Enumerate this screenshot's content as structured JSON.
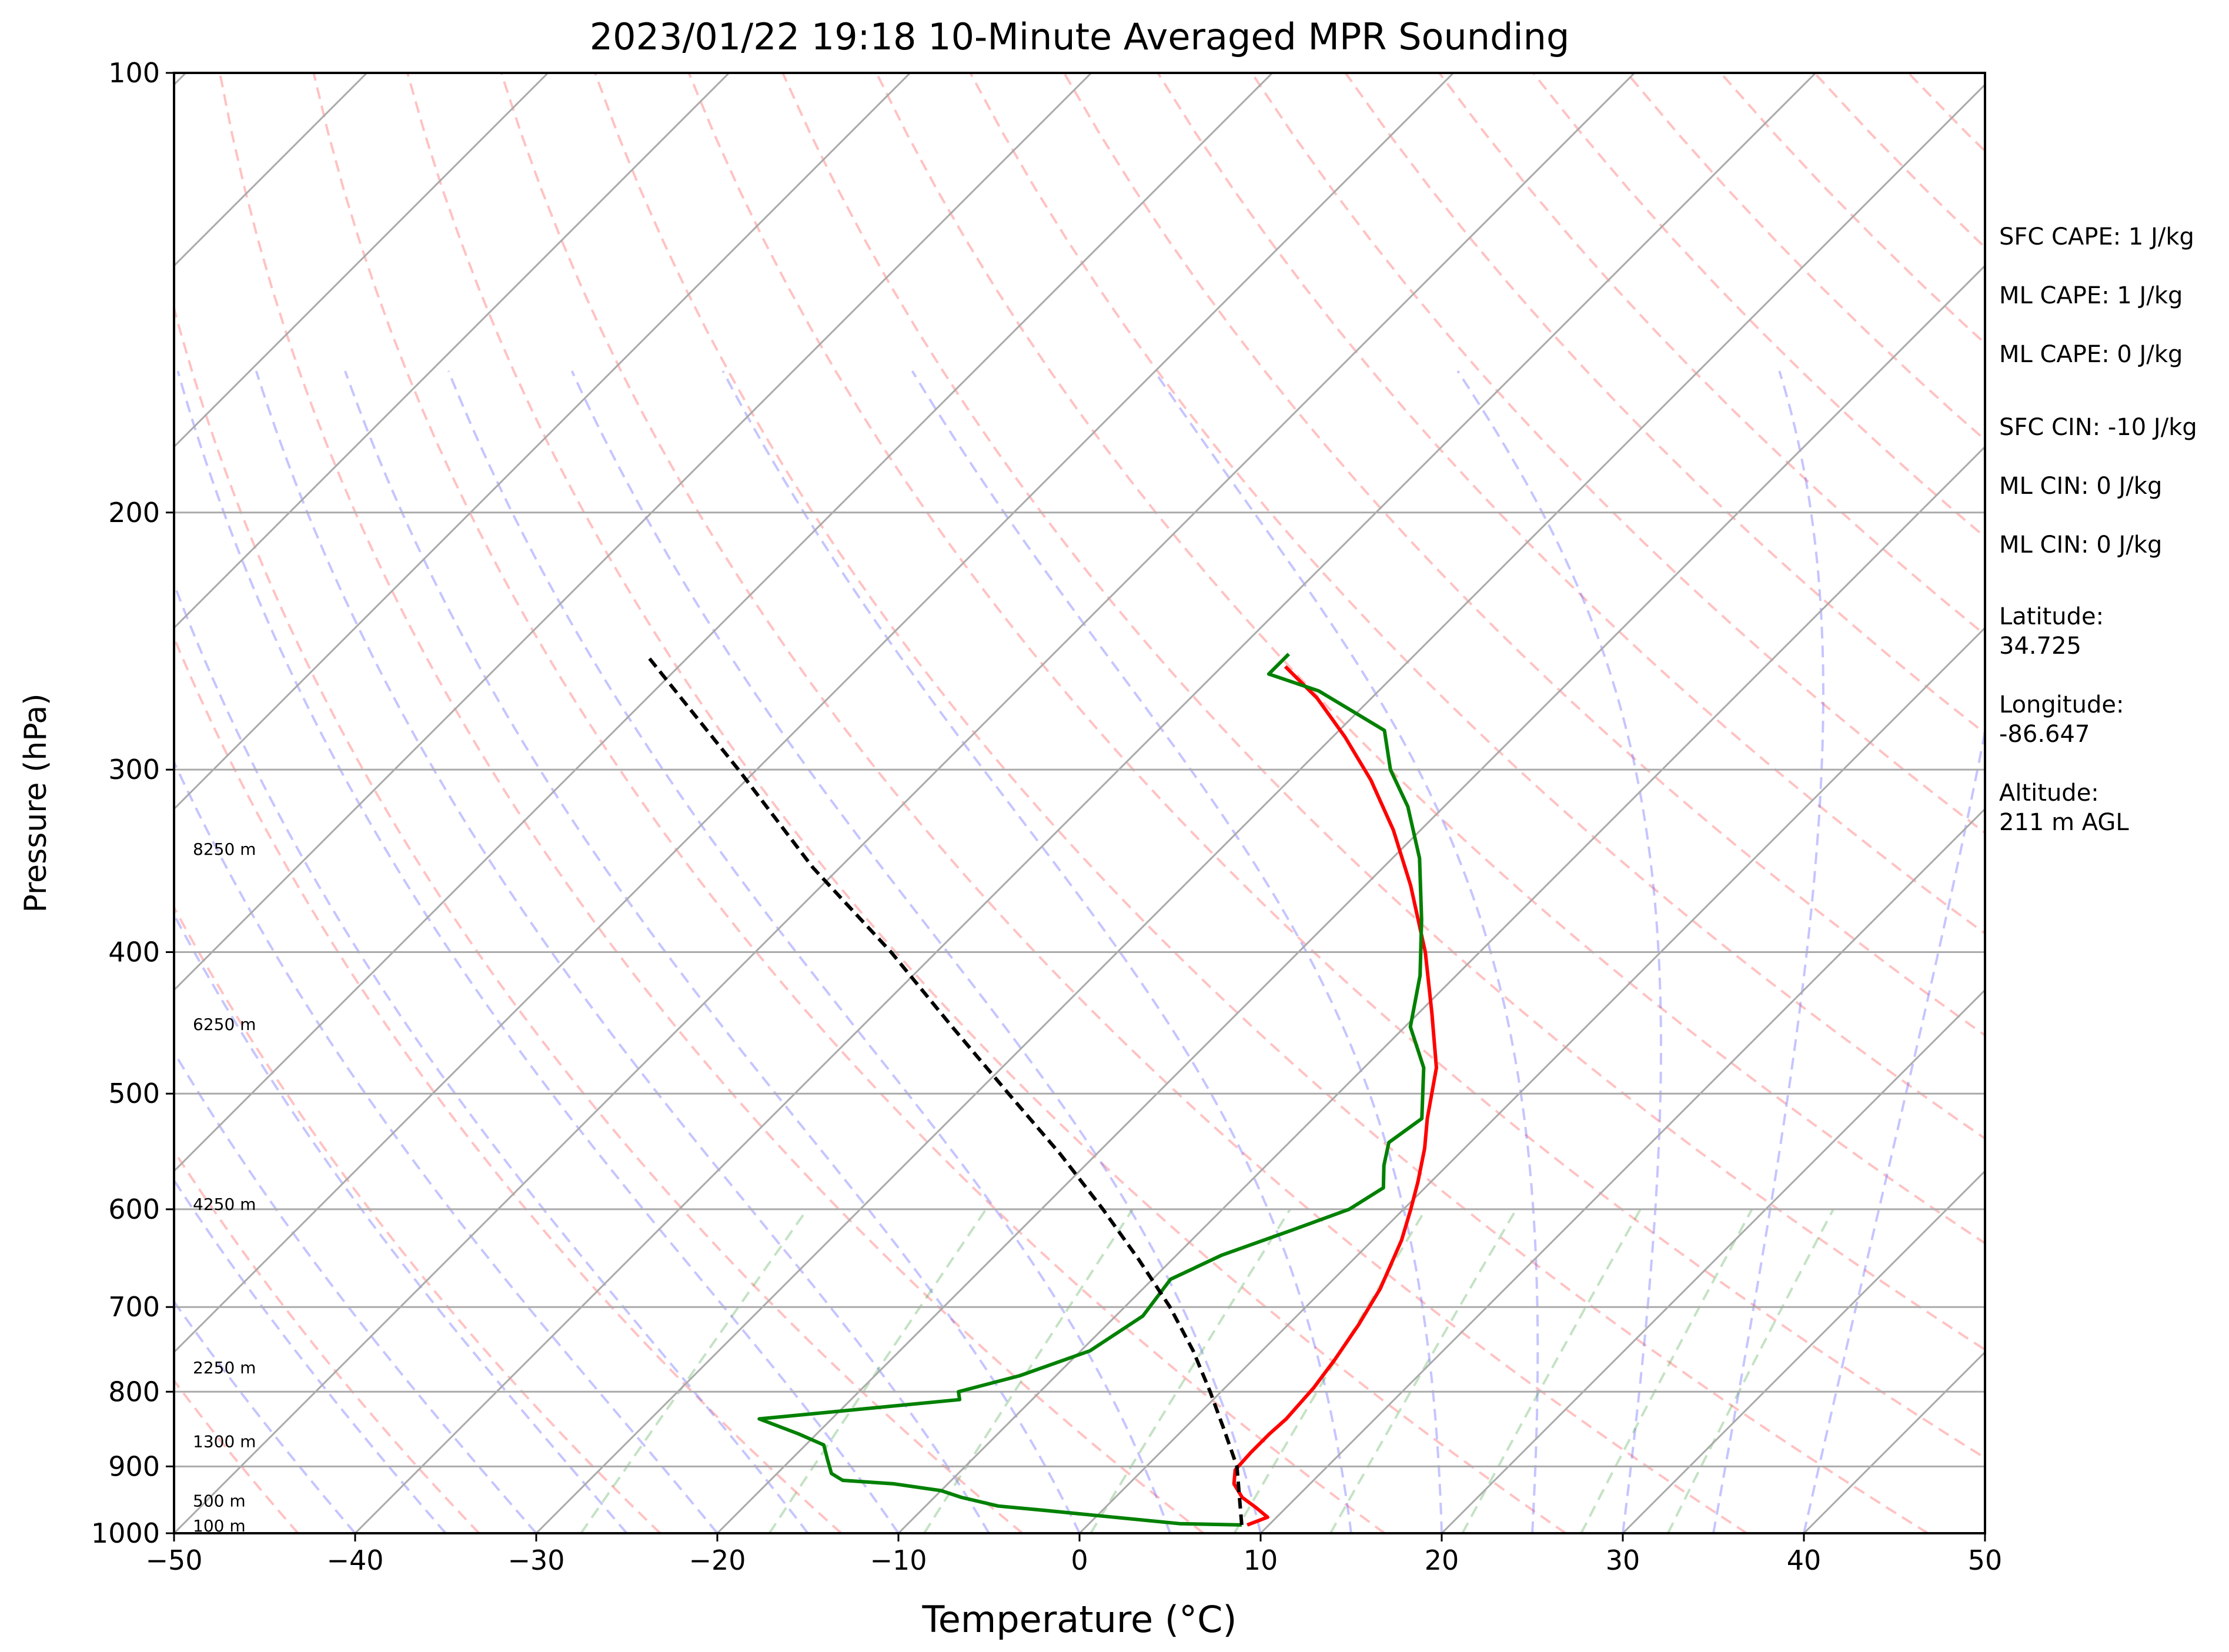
{
  "chart_data": {
    "type": "line",
    "title": "2023/01/22 19:18 10-Minute Averaged MPR Sounding",
    "xlabel": "Temperature (°C)",
    "ylabel": "Pressure (hPa)",
    "xlim": [
      -50,
      50
    ],
    "ylim": [
      1000,
      100
    ],
    "y_scale": "log",
    "skew_degrees": 45,
    "x_ticks": [
      "−50",
      "−40",
      "−30",
      "−20",
      "−10",
      "0",
      "10",
      "20",
      "30",
      "40",
      "50"
    ],
    "x_tick_values": [
      -50,
      -40,
      -30,
      -20,
      -10,
      0,
      10,
      20,
      30,
      40,
      50
    ],
    "y_ticks": [
      "100",
      "200",
      "300",
      "400",
      "500",
      "600",
      "700",
      "800",
      "900",
      "1000"
    ],
    "y_tick_values": [
      100,
      200,
      300,
      400,
      500,
      600,
      700,
      800,
      900,
      1000
    ],
    "grid": true,
    "height_labels": [
      {
        "text": "100 m",
        "p": 988
      },
      {
        "text": "500 m",
        "p": 950
      },
      {
        "text": "1300 m",
        "p": 865
      },
      {
        "text": "2250 m",
        "p": 770
      },
      {
        "text": "4250 m",
        "p": 595
      },
      {
        "text": "6250 m",
        "p": 448
      },
      {
        "text": "8250 m",
        "p": 340
      }
    ],
    "series": [
      {
        "color": "#ff0000",
        "points": [
          [
            987,
            8.8
          ],
          [
            975,
            9.5
          ],
          [
            960,
            8.3
          ],
          [
            945,
            7.0
          ],
          [
            925,
            5.8
          ],
          [
            905,
            5.1
          ],
          [
            880,
            5.0
          ],
          [
            855,
            5.0
          ],
          [
            835,
            5.1
          ],
          [
            815,
            5.0
          ],
          [
            795,
            4.9
          ],
          [
            760,
            4.5
          ],
          [
            720,
            3.9
          ],
          [
            680,
            3.1
          ],
          [
            630,
            1.6
          ],
          [
            600,
            0.4
          ],
          [
            575,
            -0.7
          ],
          [
            545,
            -2.2
          ],
          [
            520,
            -3.7
          ],
          [
            480,
            -6.0
          ],
          [
            440,
            -9.3
          ],
          [
            400,
            -13.0
          ],
          [
            360,
            -17.5
          ],
          [
            330,
            -21.5
          ],
          [
            305,
            -25.5
          ],
          [
            285,
            -29.3
          ],
          [
            268,
            -33.0
          ],
          [
            255,
            -36.5
          ]
        ]
      },
      {
        "color": "#008000",
        "points": [
          [
            987,
            8.5
          ],
          [
            985,
            5.0
          ],
          [
            975,
            1.0
          ],
          [
            965,
            -3.0
          ],
          [
            958,
            -6.0
          ],
          [
            945,
            -8.5
          ],
          [
            935,
            -10.0
          ],
          [
            925,
            -13.0
          ],
          [
            920,
            -16.0
          ],
          [
            910,
            -17.0
          ],
          [
            890,
            -18.0
          ],
          [
            870,
            -19.0
          ],
          [
            855,
            -21.0
          ],
          [
            835,
            -24.0
          ],
          [
            810,
            -14.0
          ],
          [
            800,
            -14.5
          ],
          [
            780,
            -12.0
          ],
          [
            750,
            -9.5
          ],
          [
            710,
            -8.5
          ],
          [
            670,
            -9.0
          ],
          [
            645,
            -7.5
          ],
          [
            620,
            -5.0
          ],
          [
            600,
            -3.0
          ],
          [
            580,
            -2.3
          ],
          [
            560,
            -3.5
          ],
          [
            540,
            -4.5
          ],
          [
            520,
            -4.0
          ],
          [
            480,
            -6.7
          ],
          [
            450,
            -9.7
          ],
          [
            415,
            -12.0
          ],
          [
            380,
            -15.0
          ],
          [
            345,
            -18.5
          ],
          [
            318,
            -22.0
          ],
          [
            300,
            -25.0
          ],
          [
            282,
            -27.5
          ],
          [
            265,
            -33.3
          ],
          [
            258,
            -37.0
          ],
          [
            250,
            -37.0
          ]
        ]
      },
      {
        "color": "#000000",
        "dashed": true,
        "points": [
          [
            987,
            8.5
          ],
          [
            900,
            5.0
          ],
          [
            850,
            2.3
          ],
          [
            800,
            -0.6
          ],
          [
            750,
            -3.8
          ],
          [
            700,
            -7.5
          ],
          [
            650,
            -11.8
          ],
          [
            600,
            -16.6
          ],
          [
            550,
            -22.0
          ],
          [
            500,
            -28.2
          ],
          [
            450,
            -35.0
          ],
          [
            400,
            -42.5
          ],
          [
            350,
            -51.5
          ],
          [
            300,
            -61.0
          ],
          [
            250,
            -72.5
          ]
        ]
      }
    ]
  },
  "stats": [
    "SFC CAPE: 1 J/kg",
    "ML CAPE: 1 J/kg",
    "ML CAPE: 0 J/kg",
    "SFC CIN: -10 J/kg",
    "ML CIN: 0 J/kg",
    "ML CIN: 0 J/kg"
  ],
  "location": {
    "latitude_label": "Latitude:",
    "latitude": "34.725",
    "longitude_label": "Longitude:",
    "longitude": "-86.647",
    "altitude_label": "Altitude:",
    "altitude": "211 m AGL"
  }
}
